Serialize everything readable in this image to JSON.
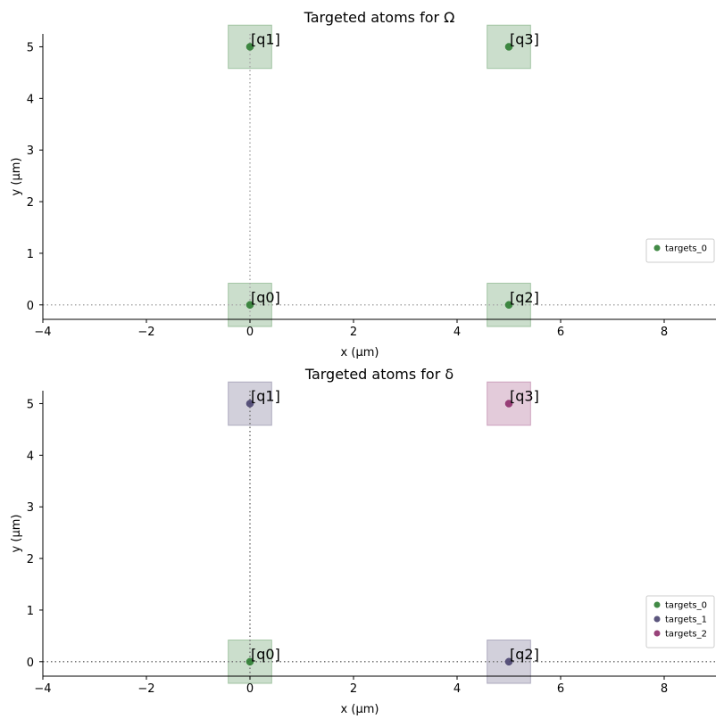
{
  "chart_data": [
    {
      "type": "scatter",
      "title": "Targeted atoms for Ω",
      "xlabel": "x (μm)",
      "ylabel": "y (μm)",
      "xlim": [
        -4,
        9
      ],
      "ylim": [
        -0.28,
        5.25
      ],
      "xticks": [
        -4,
        -2,
        0,
        2,
        4,
        6,
        8
      ],
      "xtick_labels": [
        "−4",
        "−2",
        "0",
        "2",
        "4",
        "6",
        "8"
      ],
      "yticks": [
        0,
        1,
        2,
        3,
        4,
        5
      ],
      "ytick_labels": [
        "0",
        "1",
        "2",
        "3",
        "4",
        "5"
      ],
      "grid": false,
      "legend_position": "center-right",
      "atoms": [
        {
          "label": "[q0]",
          "x": 0,
          "y": 0
        },
        {
          "label": "[q1]",
          "x": 0,
          "y": 5
        },
        {
          "label": "[q2]",
          "x": 5,
          "y": 0
        },
        {
          "label": "[q3]",
          "x": 5,
          "y": 5
        }
      ],
      "series": [
        {
          "name": "targets_0",
          "color": "#2e7d32",
          "atoms": [
            "[q0]",
            "[q1]",
            "[q2]",
            "[q3]"
          ]
        }
      ],
      "dotted_lines": {
        "vertical_x": [
          0
        ],
        "horizontal_y": [
          0
        ],
        "color": "#aaaaaa"
      }
    },
    {
      "type": "scatter",
      "title": "Targeted atoms for δ",
      "xlabel": "x (μm)",
      "ylabel": "y (μm)",
      "xlim": [
        -4,
        9
      ],
      "ylim": [
        -0.28,
        5.25
      ],
      "xticks": [
        -4,
        -2,
        0,
        2,
        4,
        6,
        8
      ],
      "xtick_labels": [
        "−4",
        "−2",
        "0",
        "2",
        "4",
        "6",
        "8"
      ],
      "yticks": [
        0,
        1,
        2,
        3,
        4,
        5
      ],
      "ytick_labels": [
        "0",
        "1",
        "2",
        "3",
        "4",
        "5"
      ],
      "grid": false,
      "legend_position": "center-right",
      "atoms": [
        {
          "label": "[q0]",
          "x": 0,
          "y": 0
        },
        {
          "label": "[q1]",
          "x": 0,
          "y": 5
        },
        {
          "label": "[q2]",
          "x": 5,
          "y": 0
        },
        {
          "label": "[q3]",
          "x": 5,
          "y": 5
        }
      ],
      "series": [
        {
          "name": "targets_0",
          "color": "#2e7d32",
          "atoms": [
            "[q0]"
          ]
        },
        {
          "name": "targets_1",
          "color": "#4a4470",
          "atoms": [
            "[q1]",
            "[q2]"
          ]
        },
        {
          "name": "targets_2",
          "color": "#8e2f6c",
          "atoms": [
            "[q3]"
          ]
        }
      ],
      "dotted_lines": {
        "vertical_x": [
          0
        ],
        "horizontal_y": [
          0
        ],
        "color": "#777777"
      }
    }
  ]
}
